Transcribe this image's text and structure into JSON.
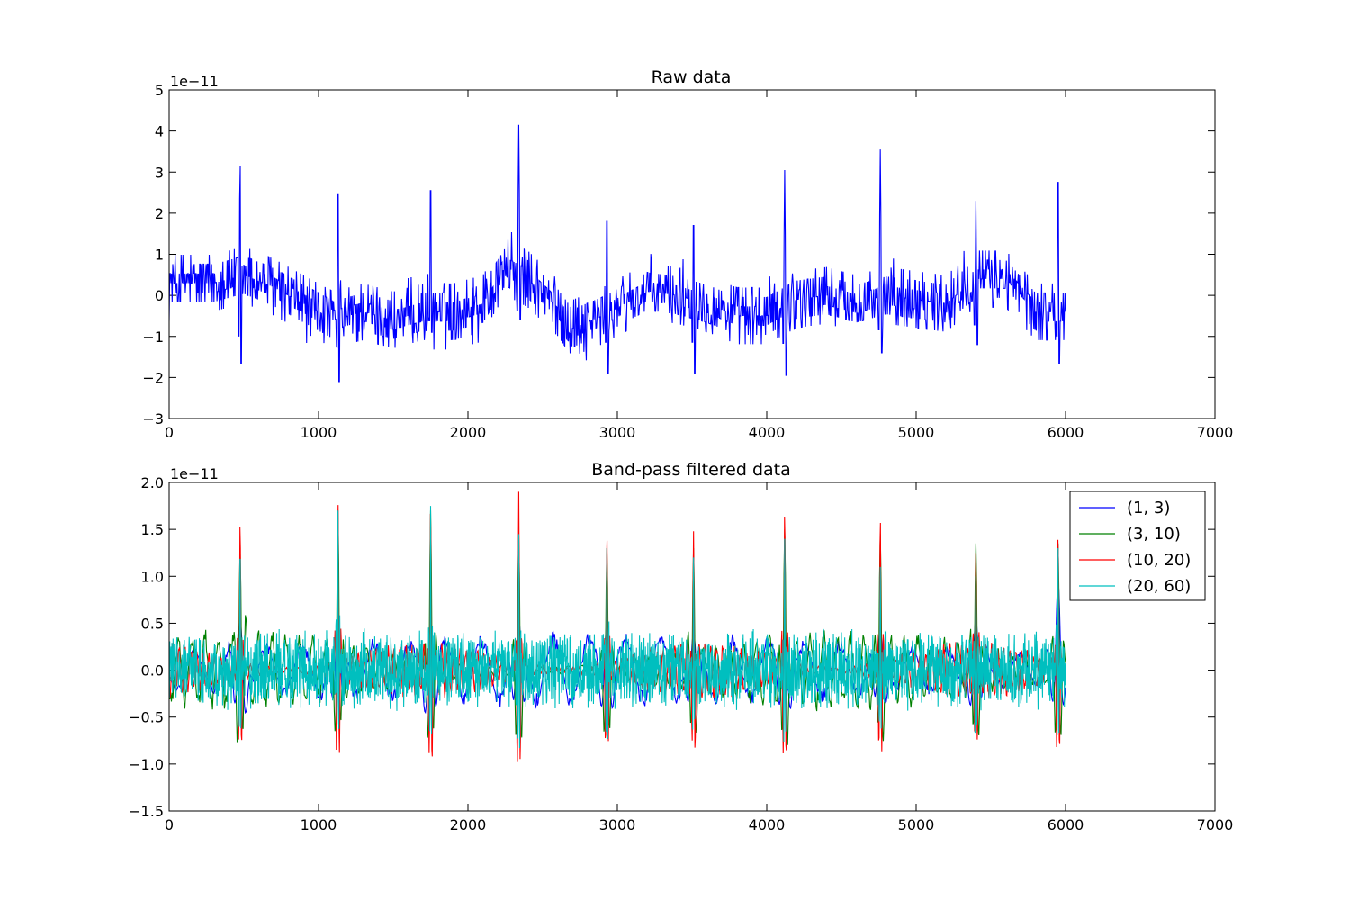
{
  "chart_data": [
    {
      "type": "line",
      "title": "Raw data",
      "offset_text": "1e−11",
      "xlim": [
        0,
        7000
      ],
      "ylim": [
        -3,
        5
      ],
      "xticks": [
        0,
        1000,
        2000,
        3000,
        4000,
        5000,
        6000,
        7000
      ],
      "xtick_labels": [
        "0",
        "1000",
        "2000",
        "3000",
        "4000",
        "5000",
        "6000",
        "7000"
      ],
      "yticks": [
        -3,
        -2,
        -1,
        0,
        1,
        2,
        3,
        4,
        5
      ],
      "ytick_labels": [
        "−3",
        "−2",
        "−1",
        "0",
        "1",
        "2",
        "3",
        "4",
        "5"
      ],
      "legend": false,
      "series": [
        {
          "color": "#0000ff",
          "x_range": [
            0,
            6000
          ],
          "base_level": [
            [
              0,
              0.3
            ],
            [
              300,
              0.3
            ],
            [
              500,
              0.5
            ],
            [
              700,
              0.2
            ],
            [
              900,
              -0.2
            ],
            [
              1100,
              -0.6
            ],
            [
              1300,
              -0.4
            ],
            [
              1500,
              -0.6
            ],
            [
              1700,
              -0.4
            ],
            [
              1900,
              -0.4
            ],
            [
              2100,
              -0.2
            ],
            [
              2250,
              0.7
            ],
            [
              2400,
              0.4
            ],
            [
              2600,
              -0.3
            ],
            [
              2700,
              -0.8
            ],
            [
              2900,
              -0.5
            ],
            [
              3000,
              -0.3
            ],
            [
              3200,
              0.1
            ],
            [
              3400,
              0.0
            ],
            [
              3600,
              -0.2
            ],
            [
              3800,
              -0.5
            ],
            [
              4000,
              -0.5
            ],
            [
              4200,
              -0.1
            ],
            [
              4400,
              0.0
            ],
            [
              4600,
              -0.2
            ],
            [
              4800,
              0.0
            ],
            [
              5000,
              -0.1
            ],
            [
              5200,
              -0.2
            ],
            [
              5400,
              0.4
            ],
            [
              5600,
              0.4
            ],
            [
              5800,
              -0.4
            ],
            [
              6000,
              -0.4
            ]
          ],
          "noise_amplitude": 0.65,
          "spikes": [
            {
              "x": 475,
              "peak": 3.55,
              "trough": -1.65
            },
            {
              "x": 1130,
              "peak": 3.25,
              "trough": -2.1
            },
            {
              "x": 1750,
              "peak": 3.35,
              "trough": -0.9
            },
            {
              "x": 2340,
              "peak": 4.15,
              "trough": -0.6
            },
            {
              "x": 2930,
              "peak": 2.6,
              "trough": -1.9
            },
            {
              "x": 3510,
              "peak": 2.5,
              "trough": -1.9
            },
            {
              "x": 4120,
              "peak": 3.05,
              "trough": -1.95
            },
            {
              "x": 4760,
              "peak": 3.55,
              "trough": -1.4
            },
            {
              "x": 5400,
              "peak": 2.3,
              "trough": -1.2
            },
            {
              "x": 5950,
              "peak": 3.55,
              "trough": -1.65
            }
          ]
        }
      ]
    },
    {
      "type": "line",
      "title": "Band-pass filtered data",
      "offset_text": "1e−11",
      "xlim": [
        0,
        7000
      ],
      "ylim": [
        -1.5,
        2.0
      ],
      "xticks": [
        0,
        1000,
        2000,
        3000,
        4000,
        5000,
        6000,
        7000
      ],
      "xtick_labels": [
        "0",
        "1000",
        "2000",
        "3000",
        "4000",
        "5000",
        "6000",
        "7000"
      ],
      "yticks": [
        -1.5,
        -1.0,
        -0.5,
        0.0,
        0.5,
        1.0,
        1.5,
        2.0
      ],
      "ytick_labels": [
        "−1.5",
        "−1.0",
        "−0.5",
        "0.0",
        "0.5",
        "1.0",
        "1.5",
        "2.0"
      ],
      "legend": true,
      "legend_position": "top-right",
      "spike_x": [
        475,
        1130,
        1750,
        2340,
        2930,
        3510,
        4120,
        4760,
        5400,
        5950
      ],
      "series": [
        {
          "name": "(1, 3)",
          "color": "#0000ff",
          "x_range": [
            0,
            6000
          ],
          "period": 240,
          "amplitude": 0.32,
          "spike_peaks": [
            0.55,
            0.55,
            0.5,
            0.55,
            0.5,
            0.4,
            0.45,
            0.45,
            0.55,
            0.95
          ],
          "spike_troughs": [
            -0.6,
            -0.5,
            -0.55,
            -0.55,
            -0.5,
            -0.5,
            -0.5,
            -0.5,
            -0.5,
            -0.55
          ]
        },
        {
          "name": "(3, 10)",
          "color": "#008000",
          "x_range": [
            0,
            6000
          ],
          "period": 90,
          "amplitude": 0.35,
          "spike_peaks": [
            1.3,
            1.7,
            1.7,
            1.45,
            1.3,
            1.3,
            1.5,
            1.45,
            1.35,
            1.35
          ],
          "spike_troughs": [
            -1.05,
            -0.95,
            -1.05,
            -1.1,
            -1.0,
            -0.95,
            -1.15,
            -1.05,
            -1.0,
            -1.05
          ]
        },
        {
          "name": "(10, 20)",
          "color": "#ff0000",
          "x_range": [
            0,
            6000
          ],
          "period": 40,
          "amplitude": 0.25,
          "spike_peaks": [
            1.6,
            1.85,
            1.75,
            1.9,
            1.45,
            1.48,
            1.72,
            1.65,
            1.25,
            1.46
          ],
          "spike_troughs": [
            -1.15,
            -1.35,
            -1.4,
            -1.45,
            -1.15,
            -1.2,
            -1.35,
            -1.25,
            -1.05,
            -1.25
          ]
        },
        {
          "name": "(20, 60)",
          "color": "#00bfbf",
          "x_range": [
            0,
            6000
          ],
          "period": 14,
          "amplitude": 0.45,
          "spike_peaks": [
            1.35,
            1.7,
            1.75,
            1.45,
            1.3,
            1.2,
            1.4,
            1.1,
            1.0,
            1.3
          ],
          "spike_troughs": [
            -1.05,
            -0.9,
            -1.05,
            -1.15,
            -1.0,
            -0.85,
            -1.05,
            -0.95,
            -0.9,
            -0.95
          ]
        }
      ]
    }
  ]
}
